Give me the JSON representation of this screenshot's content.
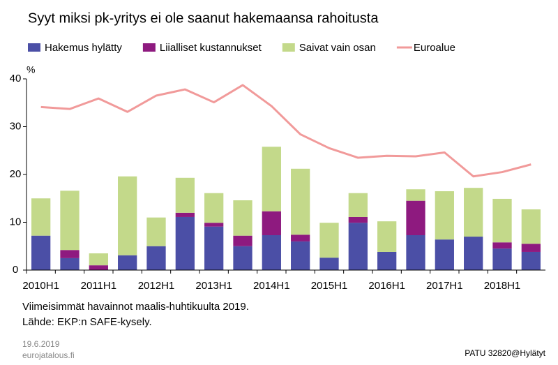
{
  "chart_data": {
    "type": "bar",
    "stacked": true,
    "title": "Syyt miksi pk-yritys ei ole saanut hakemaansa rahoitusta",
    "y_unit": "%",
    "categories": [
      "2010H1",
      null,
      "2011H1",
      null,
      "2012H1",
      null,
      "2013H1",
      null,
      "2014H1",
      null,
      "2015H1",
      null,
      "2016H1",
      null,
      "2017H1",
      null,
      "2018H1",
      null
    ],
    "series": [
      {
        "name": "Hakemus hylätty",
        "type": "bar",
        "color": "#4b4fa6",
        "values": [
          7.2,
          2.5,
          0,
          3.1,
          5.0,
          11.1,
          9.1,
          5.0,
          7.3,
          6.0,
          2.6,
          9.9,
          3.8,
          7.3,
          6.4,
          7.0,
          4.5,
          3.8
        ]
      },
      {
        "name": "Liialliset kustannukset",
        "type": "bar",
        "color": "#8e1a7f",
        "values": [
          0,
          1.7,
          1.0,
          0,
          0,
          0.9,
          0.8,
          2.2,
          5.0,
          1.4,
          0,
          1.2,
          0,
          7.2,
          0,
          0,
          1.3,
          1.7
        ]
      },
      {
        "name": "Saivat vain osan",
        "type": "bar",
        "color": "#c3d98a",
        "values": [
          7.8,
          12.4,
          2.5,
          16.5,
          6.0,
          7.3,
          6.2,
          7.4,
          13.5,
          13.8,
          7.3,
          5.0,
          6.4,
          2.4,
          10.1,
          10.2,
          9.1,
          7.2
        ]
      },
      {
        "name": "Euroalue",
        "type": "line",
        "color": "#f19a9a",
        "values": [
          34.1,
          33.7,
          35.9,
          33.1,
          36.5,
          37.8,
          35.1,
          38.7,
          34.3,
          28.4,
          25.5,
          23.5,
          23.9,
          23.8,
          24.6,
          19.6,
          20.5,
          22.1
        ]
      }
    ],
    "ylim": [
      0,
      40
    ],
    "yticks": [
      0,
      10,
      20,
      30,
      40
    ],
    "grid": false,
    "notes": [
      "Viimeisimmät havainnot maalis-huhtikuulta 2019.",
      "Lähde: EKP:n SAFE-kysely."
    ],
    "date": "19.6.2019",
    "site": "eurojatalous.fi",
    "code": "PATU 32820@Hylätyt"
  }
}
